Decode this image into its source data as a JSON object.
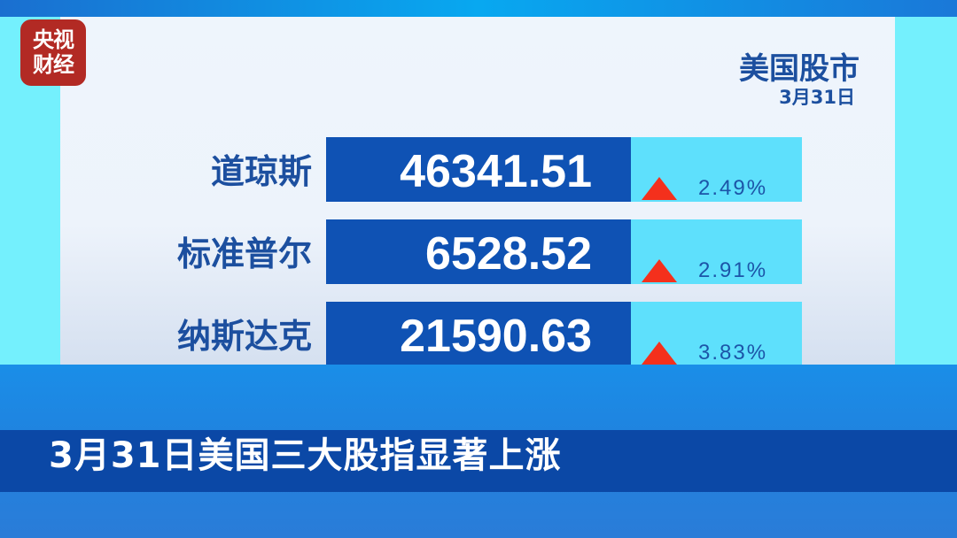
{
  "logo": {
    "line1": "央视",
    "line2": "财经"
  },
  "header": {
    "title": "美国股市",
    "date": "3月31日"
  },
  "indices": [
    {
      "name": "道琼斯",
      "value": "46341.51",
      "change": "2.49%",
      "direction": "up"
    },
    {
      "name": "标准普尔",
      "value": "6528.52",
      "change": "2.91%",
      "direction": "up"
    },
    {
      "name": "纳斯达克",
      "value": "21590.63",
      "change": "3.83%",
      "direction": "up"
    }
  ],
  "subtitle": "3月31日美国三大股指显著上涨",
  "colors": {
    "up": "#f4301c",
    "value_bg": "#0f52b4",
    "change_bg": "#5ee0fc",
    "text": "#1c4f9f",
    "logo_bg": "#b22a24"
  }
}
